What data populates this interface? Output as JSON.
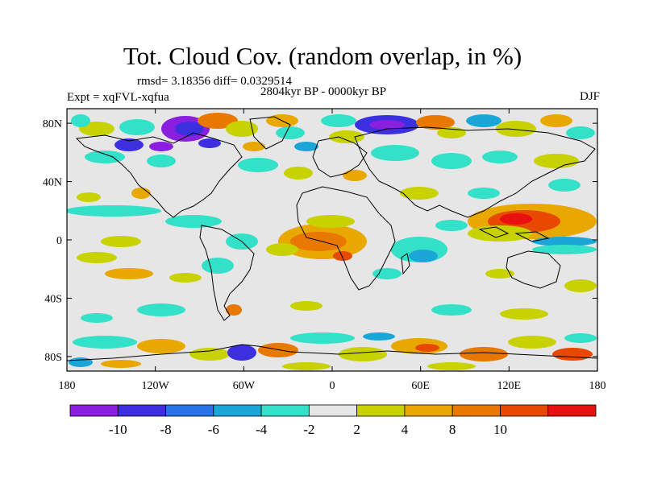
{
  "title": "Tot. Cloud Cov. (random overlap, in %)",
  "stats_line": "rmsd= 3.18356 diff= 0.0329514",
  "period": "2804kyr BP - 0000kyr BP",
  "experiment": "Expt = xqFVL-xqfua",
  "season": "DJF",
  "map": {
    "y_ticks": [
      "80N",
      "40N",
      "0",
      "40S",
      "80S"
    ],
    "x_ticks": [
      "180",
      "120W",
      "60W",
      "0",
      "60E",
      "120E",
      "180"
    ],
    "background_color": "#e6e6e6"
  },
  "colorbar": {
    "colors": [
      "#8a1fe0",
      "#3c2fe0",
      "#2a72e8",
      "#1aa7d8",
      "#33e0c8",
      "#e6e6e6",
      "#c8d200",
      "#e8a800",
      "#e87800",
      "#e84800",
      "#e81010"
    ],
    "labels": [
      "-10",
      "-8",
      "-6",
      "-4",
      "-2",
      "2",
      "4",
      "8",
      "10"
    ]
  }
}
